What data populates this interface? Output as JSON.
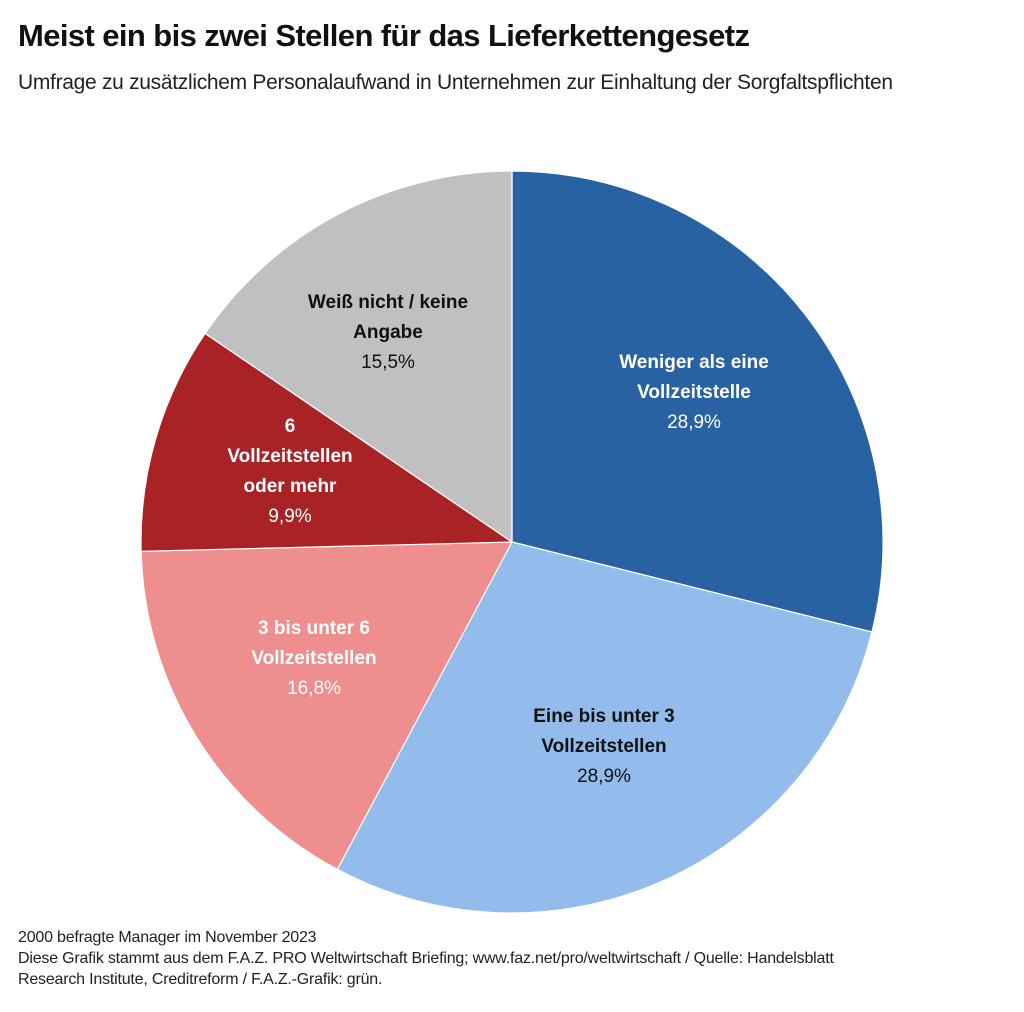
{
  "header": {
    "title": "Meist ein bis zwei Stellen für das Lieferkettengesetz",
    "subtitle": "Umfrage zu zusätzlichem Personalaufwand in Unternehmen zur Einhaltung der Sorgfaltspflichten"
  },
  "chart_data": {
    "type": "pie",
    "title": "Meist ein bis zwei Stellen für das Lieferkettengesetz",
    "subtitle": "Umfrage zu zusätzlichem Personalaufwand in Unternehmen zur Einhaltung der Sorgfaltspflichten",
    "start": "12 o'clock, clockwise",
    "unit": "%",
    "slices": [
      {
        "label_lines": [
          "Weniger als eine",
          "Vollzeitstelle"
        ],
        "label": "Weniger als eine Vollzeitstelle",
        "value": 28.9,
        "value_text": "28,9%",
        "color": "#2962a3",
        "text_color": "#ffffff"
      },
      {
        "label_lines": [
          "Eine bis unter 3",
          "Vollzeitstellen"
        ],
        "label": "Eine bis unter 3 Vollzeitstellen",
        "value": 28.9,
        "value_text": "28,9%",
        "color": "#93bbec",
        "text_color": "#111111"
      },
      {
        "label_lines": [
          "3 bis unter 6",
          "Vollzeitstellen"
        ],
        "label": "3 bis unter 6 Vollzeitstellen",
        "value": 16.8,
        "value_text": "16,8%",
        "color": "#ef8e8e",
        "text_color": "#ffffff"
      },
      {
        "label_lines": [
          "6",
          "Vollzeitstellen",
          "oder mehr"
        ],
        "label": "6 Vollzeitstellen oder mehr",
        "value": 9.9,
        "value_text": "9,9%",
        "color": "#a82226",
        "text_color": "#ffffff"
      },
      {
        "label_lines": [
          "Weiß nicht / keine",
          "Angabe"
        ],
        "label": "Weiß nicht / keine Angabe",
        "value": 15.5,
        "value_text": "15,5%",
        "color": "#c0c0c0",
        "text_color": "#111111"
      }
    ]
  },
  "footer": {
    "note": "2000 befragte Manager im November 2023",
    "source_line1": "Diese Grafik stammt aus dem F.A.Z. PRO Weltwirtschaft Briefing; www.faz.net/pro/weltwirtschaft / Quelle: Handelsblatt",
    "source_line2": "Research Institute, Creditreform / F.A.Z.-Grafik: grün."
  }
}
